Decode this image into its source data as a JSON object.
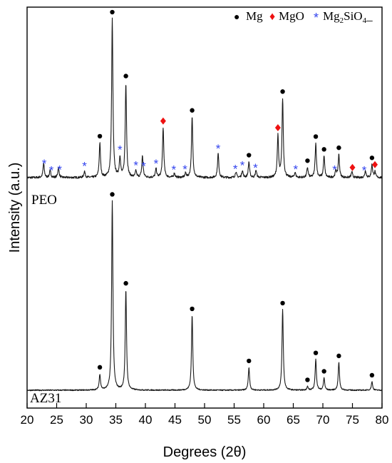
{
  "chart_data": {
    "type": "line",
    "xlabel": "Degrees (2θ)",
    "ylabel": "Intensity (a.u.)",
    "xlim": [
      20,
      80
    ],
    "x_ticks": [
      "20",
      "25",
      "30",
      "35",
      "40",
      "45",
      "50",
      "55",
      "60",
      "65",
      "70",
      "75",
      "80"
    ],
    "grid": false,
    "legend_position": "top-right",
    "legend": [
      {
        "symbol": "●",
        "label": "Mg",
        "color": "#000000"
      },
      {
        "symbol": "♦",
        "label": "MgO",
        "color": "#ee1111"
      },
      {
        "symbol": "*",
        "label": "Mg",
        "sub": "2",
        "label2": "SiO",
        "sub2": "4",
        "tail": "_",
        "color": "#3344ee"
      }
    ],
    "series": [
      {
        "name": "PEO",
        "peaks": [
          [
            22.8,
            20
          ],
          [
            23.9,
            10
          ],
          [
            25.3,
            14
          ],
          [
            29.7,
            9
          ],
          [
            32.3,
            48
          ],
          [
            34.4,
            222
          ],
          [
            35.7,
            28
          ],
          [
            36.7,
            132
          ],
          [
            38.4,
            9
          ],
          [
            39.5,
            30
          ],
          [
            41.8,
            12
          ],
          [
            43.0,
            70
          ],
          [
            44.9,
            6
          ],
          [
            46.8,
            6
          ],
          [
            47.9,
            85
          ],
          [
            52.3,
            34
          ],
          [
            55.3,
            8
          ],
          [
            56.4,
            10
          ],
          [
            57.5,
            22
          ],
          [
            58.7,
            10
          ],
          [
            62.4,
            58
          ],
          [
            63.2,
            110
          ],
          [
            65.3,
            7
          ],
          [
            67.4,
            14
          ],
          [
            68.8,
            48
          ],
          [
            70.2,
            30
          ],
          [
            72.2,
            10
          ],
          [
            72.7,
            32
          ],
          [
            74.9,
            8
          ],
          [
            77.2,
            10
          ],
          [
            78.3,
            18
          ],
          [
            78.8,
            8
          ]
        ]
      },
      {
        "name": "AZ31",
        "peaks": [
          [
            32.3,
            22
          ],
          [
            34.4,
            265
          ],
          [
            36.7,
            140
          ],
          [
            47.9,
            105
          ],
          [
            57.5,
            32
          ],
          [
            63.2,
            113
          ],
          [
            67.4,
            5
          ],
          [
            68.8,
            43
          ],
          [
            70.2,
            17
          ],
          [
            72.7,
            39
          ],
          [
            78.3,
            12
          ]
        ]
      }
    ],
    "markers": [
      {
        "series": "PEO",
        "type": "Mg",
        "x": [
          32.3,
          34.4,
          36.7,
          47.9,
          57.5,
          63.2,
          67.4,
          68.8,
          70.2,
          72.7,
          78.3
        ]
      },
      {
        "series": "PEO",
        "type": "MgO",
        "x": [
          43.0,
          62.4,
          75.0,
          78.8
        ]
      },
      {
        "series": "PEO",
        "type": "Mg2SiO4",
        "x": [
          22.9,
          24.1,
          25.5,
          29.7,
          35.7,
          38.4,
          39.7,
          41.8,
          44.8,
          46.7,
          52.3,
          55.2,
          56.4,
          58.6,
          65.4,
          72.0,
          77.0
        ]
      },
      {
        "series": "AZ31",
        "type": "Mg",
        "x": [
          32.3,
          34.4,
          36.7,
          47.9,
          57.5,
          63.2,
          67.4,
          68.8,
          70.2,
          72.7,
          78.3
        ]
      }
    ]
  }
}
